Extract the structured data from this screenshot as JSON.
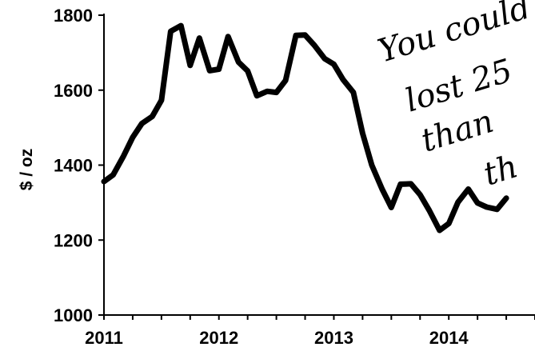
{
  "chart_data": {
    "type": "line",
    "ylabel": "$ / oz",
    "xlabel": "",
    "title": "",
    "ylim": [
      1000,
      1800
    ],
    "xlim": [
      2011.0,
      2014.75
    ],
    "yticks": [
      "1000",
      "1200",
      "1400",
      "1600",
      "1800"
    ],
    "xticks": [
      "2011",
      "2012",
      "2013",
      "2014"
    ],
    "grid": false,
    "legend": "none",
    "line_color": "#000000",
    "series": [
      {
        "x": [
          2011.0,
          2011.08,
          2011.17,
          2011.25,
          2011.33,
          2011.42,
          2011.5,
          2011.58,
          2011.67,
          2011.75,
          2011.83,
          2011.92,
          2012.0,
          2012.08,
          2012.17,
          2012.25,
          2012.33,
          2012.42,
          2012.5,
          2012.58,
          2012.67,
          2012.75,
          2012.83,
          2012.92,
          2013.0,
          2013.08,
          2013.17,
          2013.25,
          2013.33,
          2013.42,
          2013.5,
          2013.58,
          2013.67,
          2013.75,
          2013.83,
          2013.92,
          2014.0,
          2014.08,
          2014.17,
          2014.25,
          2014.33,
          2014.42,
          2014.5
        ],
        "values": [
          1356,
          1374,
          1424,
          1474,
          1511,
          1530,
          1573,
          1757,
          1772,
          1666,
          1739,
          1652,
          1656,
          1743,
          1675,
          1651,
          1585,
          1597,
          1594,
          1626,
          1746,
          1747,
          1720,
          1684,
          1669,
          1628,
          1594,
          1485,
          1400,
          1336,
          1287,
          1349,
          1350,
          1321,
          1279,
          1226,
          1244,
          1301,
          1336,
          1299,
          1288,
          1282,
          1312
        ]
      }
    ],
    "annotation": {
      "lines": [
        "You could",
        "lost 25",
        "than",
        "th"
      ]
    }
  }
}
